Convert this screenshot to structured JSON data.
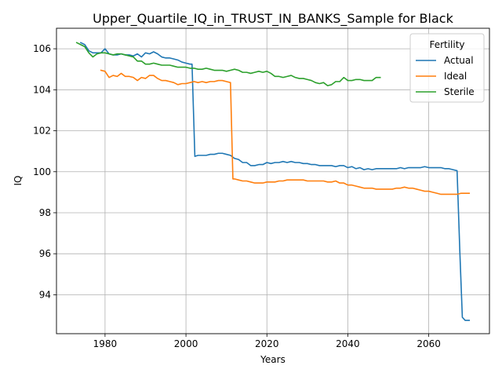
{
  "chart_data": {
    "type": "line",
    "title": "Upper_Quartile_IQ_in_TRUST_IN_BANKS_Sample for Black",
    "xlabel": "Years",
    "ylabel": "IQ",
    "xlim": [
      1968,
      2075
    ],
    "ylim": [
      92.1,
      107.0
    ],
    "xticks": [
      1980,
      2000,
      2020,
      2040,
      2060
    ],
    "yticks": [
      94,
      96,
      98,
      100,
      102,
      104,
      106
    ],
    "grid": true,
    "legend": {
      "title": "Fertility",
      "placement": "top-right"
    },
    "series": [
      {
        "name": "Actual",
        "color": "#1f77b4",
        "points": [
          [
            1974,
            106.3
          ],
          [
            1975,
            106.2
          ],
          [
            1976,
            105.9
          ],
          [
            1977,
            105.8
          ],
          [
            1978,
            105.8
          ],
          [
            1979,
            105.8
          ],
          [
            1980,
            106.0
          ],
          [
            1981,
            105.75
          ],
          [
            1982,
            105.7
          ],
          [
            1983,
            105.7
          ],
          [
            1984,
            105.75
          ],
          [
            1985,
            105.7
          ],
          [
            1986,
            105.7
          ],
          [
            1987,
            105.65
          ],
          [
            1988,
            105.75
          ],
          [
            1989,
            105.6
          ],
          [
            1990,
            105.8
          ],
          [
            1991,
            105.75
          ],
          [
            1992,
            105.85
          ],
          [
            1993,
            105.75
          ],
          [
            1994,
            105.6
          ],
          [
            1995,
            105.55
          ],
          [
            1996,
            105.55
          ],
          [
            1997,
            105.5
          ],
          [
            1998,
            105.45
          ],
          [
            1999,
            105.35
          ],
          [
            2000,
            105.3
          ],
          [
            2001,
            105.25
          ],
          [
            2001.5,
            105.25
          ],
          [
            2002.2,
            100.75
          ],
          [
            2003,
            100.8
          ],
          [
            2004,
            100.8
          ],
          [
            2005,
            100.8
          ],
          [
            2006,
            100.85
          ],
          [
            2007,
            100.85
          ],
          [
            2008,
            100.9
          ],
          [
            2009,
            100.9
          ],
          [
            2010,
            100.85
          ],
          [
            2011,
            100.8
          ],
          [
            2012,
            100.65
          ],
          [
            2013,
            100.6
          ],
          [
            2014,
            100.45
          ],
          [
            2015,
            100.45
          ],
          [
            2016,
            100.3
          ],
          [
            2017,
            100.3
          ],
          [
            2018,
            100.35
          ],
          [
            2019,
            100.35
          ],
          [
            2020,
            100.45
          ],
          [
            2021,
            100.4
          ],
          [
            2022,
            100.45
          ],
          [
            2023,
            100.45
          ],
          [
            2024,
            100.5
          ],
          [
            2025,
            100.45
          ],
          [
            2026,
            100.5
          ],
          [
            2027,
            100.45
          ],
          [
            2028,
            100.45
          ],
          [
            2029,
            100.4
          ],
          [
            2030,
            100.4
          ],
          [
            2031,
            100.35
          ],
          [
            2032,
            100.35
          ],
          [
            2033,
            100.3
          ],
          [
            2034,
            100.3
          ],
          [
            2035,
            100.3
          ],
          [
            2036,
            100.3
          ],
          [
            2037,
            100.25
          ],
          [
            2038,
            100.3
          ],
          [
            2039,
            100.3
          ],
          [
            2040,
            100.2
          ],
          [
            2041,
            100.25
          ],
          [
            2042,
            100.15
          ],
          [
            2043,
            100.2
          ],
          [
            2044,
            100.1
          ],
          [
            2045,
            100.15
          ],
          [
            2046,
            100.1
          ],
          [
            2047,
            100.15
          ],
          [
            2048,
            100.15
          ],
          [
            2049,
            100.15
          ],
          [
            2050,
            100.15
          ],
          [
            2051,
            100.15
          ],
          [
            2052,
            100.15
          ],
          [
            2053,
            100.2
          ],
          [
            2054,
            100.15
          ],
          [
            2055,
            100.2
          ],
          [
            2056,
            100.2
          ],
          [
            2057,
            100.2
          ],
          [
            2058,
            100.2
          ],
          [
            2059,
            100.25
          ],
          [
            2060,
            100.2
          ],
          [
            2061,
            100.2
          ],
          [
            2062,
            100.2
          ],
          [
            2063,
            100.2
          ],
          [
            2064,
            100.15
          ],
          [
            2065,
            100.15
          ],
          [
            2066,
            100.1
          ],
          [
            2067,
            100.05
          ],
          [
            2067.7,
            96.0
          ],
          [
            2068.3,
            92.9
          ],
          [
            2069,
            92.75
          ],
          [
            2070,
            92.75
          ]
        ]
      },
      {
        "name": "Ideal",
        "color": "#ff7f0e",
        "points": [
          [
            1979,
            104.95
          ],
          [
            1980,
            104.9
          ],
          [
            1981,
            104.6
          ],
          [
            1982,
            104.7
          ],
          [
            1983,
            104.65
          ],
          [
            1984,
            104.8
          ],
          [
            1985,
            104.65
          ],
          [
            1986,
            104.65
          ],
          [
            1987,
            104.6
          ],
          [
            1988,
            104.45
          ],
          [
            1989,
            104.6
          ],
          [
            1990,
            104.55
          ],
          [
            1991,
            104.7
          ],
          [
            1992,
            104.7
          ],
          [
            1993,
            104.55
          ],
          [
            1994,
            104.45
          ],
          [
            1995,
            104.45
          ],
          [
            1996,
            104.4
          ],
          [
            1997,
            104.35
          ],
          [
            1998,
            104.25
          ],
          [
            1999,
            104.3
          ],
          [
            2000,
            104.3
          ],
          [
            2001,
            104.35
          ],
          [
            2002,
            104.4
          ],
          [
            2003,
            104.35
          ],
          [
            2004,
            104.4
          ],
          [
            2005,
            104.35
          ],
          [
            2006,
            104.4
          ],
          [
            2007,
            104.4
          ],
          [
            2008,
            104.45
          ],
          [
            2009,
            104.45
          ],
          [
            2010,
            104.4
          ],
          [
            2011,
            104.35
          ],
          [
            2011.6,
            99.65
          ],
          [
            2012,
            99.65
          ],
          [
            2013,
            99.6
          ],
          [
            2014,
            99.55
          ],
          [
            2015,
            99.55
          ],
          [
            2016,
            99.5
          ],
          [
            2017,
            99.45
          ],
          [
            2018,
            99.45
          ],
          [
            2019,
            99.45
          ],
          [
            2020,
            99.5
          ],
          [
            2021,
            99.5
          ],
          [
            2022,
            99.5
          ],
          [
            2023,
            99.55
          ],
          [
            2024,
            99.55
          ],
          [
            2025,
            99.6
          ],
          [
            2026,
            99.6
          ],
          [
            2027,
            99.6
          ],
          [
            2028,
            99.6
          ],
          [
            2029,
            99.6
          ],
          [
            2030,
            99.55
          ],
          [
            2031,
            99.55
          ],
          [
            2032,
            99.55
          ],
          [
            2033,
            99.55
          ],
          [
            2034,
            99.55
          ],
          [
            2035,
            99.5
          ],
          [
            2036,
            99.5
          ],
          [
            2037,
            99.55
          ],
          [
            2038,
            99.45
          ],
          [
            2039,
            99.45
          ],
          [
            2040,
            99.35
          ],
          [
            2041,
            99.35
          ],
          [
            2042,
            99.3
          ],
          [
            2043,
            99.25
          ],
          [
            2044,
            99.2
          ],
          [
            2045,
            99.2
          ],
          [
            2046,
            99.2
          ],
          [
            2047,
            99.15
          ],
          [
            2048,
            99.15
          ],
          [
            2049,
            99.15
          ],
          [
            2050,
            99.15
          ],
          [
            2051,
            99.15
          ],
          [
            2052,
            99.2
          ],
          [
            2053,
            99.2
          ],
          [
            2054,
            99.25
          ],
          [
            2055,
            99.2
          ],
          [
            2056,
            99.2
          ],
          [
            2057,
            99.15
          ],
          [
            2058,
            99.1
          ],
          [
            2059,
            99.05
          ],
          [
            2060,
            99.05
          ],
          [
            2061,
            99.0
          ],
          [
            2062,
            98.95
          ],
          [
            2063,
            98.9
          ],
          [
            2064,
            98.9
          ],
          [
            2065,
            98.9
          ],
          [
            2066,
            98.9
          ],
          [
            2067,
            98.9
          ],
          [
            2068,
            98.95
          ],
          [
            2069,
            98.95
          ],
          [
            2070,
            98.95
          ]
        ]
      },
      {
        "name": "Sterile",
        "color": "#2ca02c",
        "points": [
          [
            1973,
            106.3
          ],
          [
            1974,
            106.2
          ],
          [
            1975,
            106.1
          ],
          [
            1976,
            105.8
          ],
          [
            1977,
            105.6
          ],
          [
            1978,
            105.75
          ],
          [
            1979,
            105.8
          ],
          [
            1980,
            105.8
          ],
          [
            1981,
            105.75
          ],
          [
            1982,
            105.7
          ],
          [
            1983,
            105.75
          ],
          [
            1984,
            105.75
          ],
          [
            1985,
            105.7
          ],
          [
            1986,
            105.65
          ],
          [
            1987,
            105.6
          ],
          [
            1988,
            105.4
          ],
          [
            1989,
            105.4
          ],
          [
            1990,
            105.25
          ],
          [
            1991,
            105.25
          ],
          [
            1992,
            105.3
          ],
          [
            1993,
            105.25
          ],
          [
            1994,
            105.2
          ],
          [
            1995,
            105.2
          ],
          [
            1996,
            105.2
          ],
          [
            1997,
            105.15
          ],
          [
            1998,
            105.1
          ],
          [
            1999,
            105.1
          ],
          [
            2000,
            105.1
          ],
          [
            2001,
            105.05
          ],
          [
            2002,
            105.05
          ],
          [
            2003,
            105.0
          ],
          [
            2004,
            105.0
          ],
          [
            2005,
            105.05
          ],
          [
            2006,
            105.0
          ],
          [
            2007,
            104.95
          ],
          [
            2008,
            104.95
          ],
          [
            2009,
            104.95
          ],
          [
            2010,
            104.9
          ],
          [
            2011,
            104.95
          ],
          [
            2012,
            105.0
          ],
          [
            2013,
            104.95
          ],
          [
            2014,
            104.85
          ],
          [
            2015,
            104.85
          ],
          [
            2016,
            104.8
          ],
          [
            2017,
            104.85
          ],
          [
            2018,
            104.9
          ],
          [
            2019,
            104.85
          ],
          [
            2020,
            104.9
          ],
          [
            2021,
            104.8
          ],
          [
            2022,
            104.65
          ],
          [
            2023,
            104.65
          ],
          [
            2024,
            104.6
          ],
          [
            2025,
            104.65
          ],
          [
            2026,
            104.7
          ],
          [
            2027,
            104.6
          ],
          [
            2028,
            104.55
          ],
          [
            2029,
            104.55
          ],
          [
            2030,
            104.5
          ],
          [
            2031,
            104.45
          ],
          [
            2032,
            104.35
          ],
          [
            2033,
            104.3
          ],
          [
            2034,
            104.35
          ],
          [
            2035,
            104.2
          ],
          [
            2036,
            104.25
          ],
          [
            2037,
            104.4
          ],
          [
            2038,
            104.4
          ],
          [
            2039,
            104.6
          ],
          [
            2040,
            104.45
          ],
          [
            2041,
            104.45
          ],
          [
            2042,
            104.5
          ],
          [
            2043,
            104.5
          ],
          [
            2044,
            104.45
          ],
          [
            2045,
            104.45
          ],
          [
            2046,
            104.45
          ],
          [
            2047,
            104.6
          ],
          [
            2048,
            104.6
          ]
        ]
      }
    ]
  }
}
